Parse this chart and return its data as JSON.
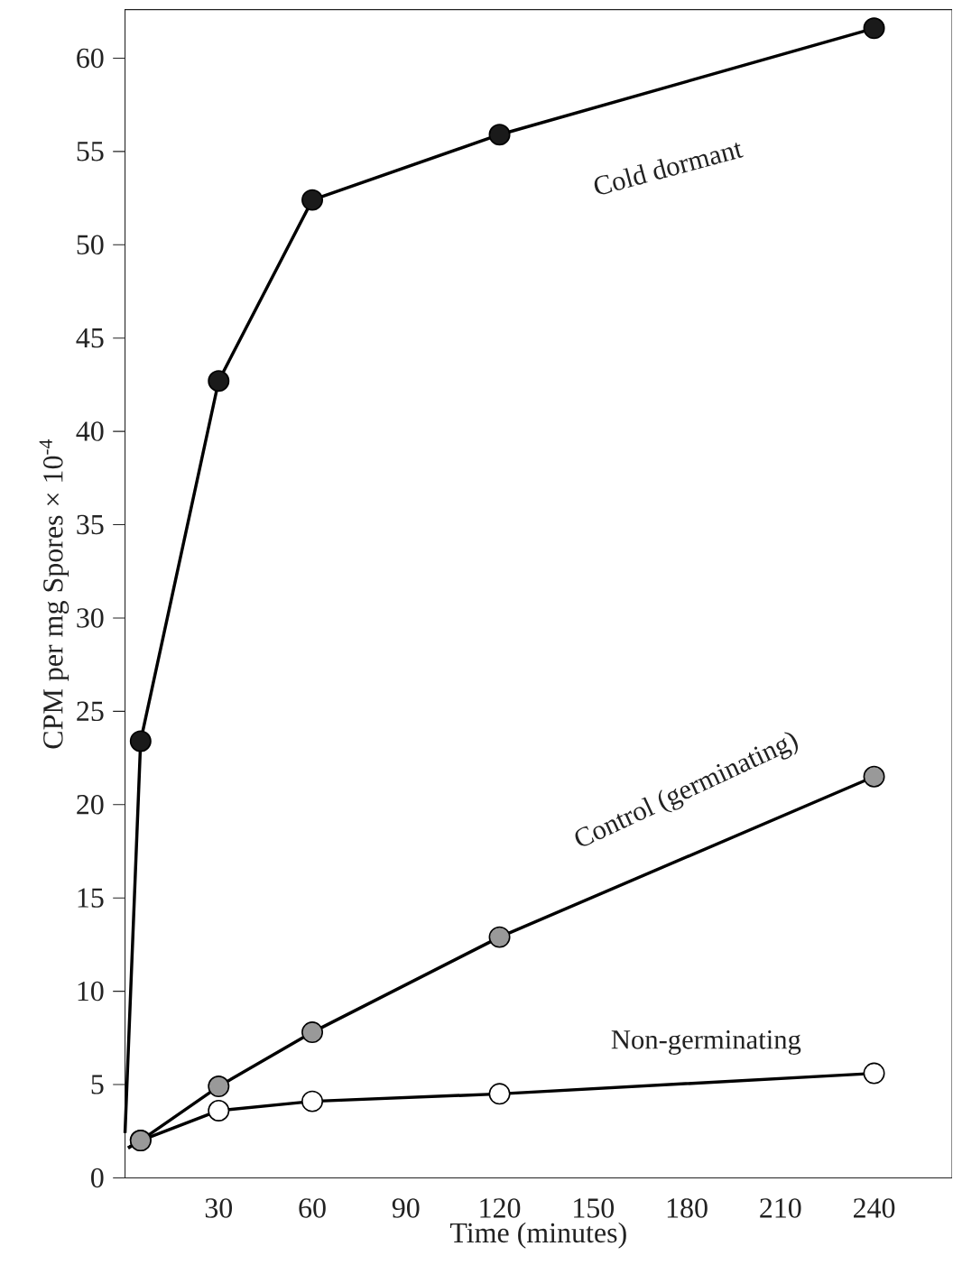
{
  "chart_data": {
    "type": "line",
    "xlabel": "Time (minutes)",
    "ylabel": "CPM per mg Spores × 10$^{-4}$",
    "xlim": [
      0,
      265
    ],
    "xticks": [
      30,
      60,
      90,
      120,
      150,
      180,
      210,
      240
    ],
    "ylim": [
      0,
      62.6
    ],
    "yticks": [
      0,
      5,
      10,
      15,
      20,
      25,
      30,
      35,
      40,
      45,
      50,
      55,
      60
    ],
    "marker": "circle",
    "line_style": "solid",
    "series": [
      {
        "name": "Cold dormant",
        "color": "#1a1a1a",
        "x": [
          0,
          5,
          30,
          60,
          120,
          240
        ],
        "values": [
          2.4,
          23.4,
          42.7,
          52.4,
          55.9,
          61.6
        ]
      },
      {
        "name": "Control (germinating)",
        "color": "#999999",
        "x": [
          1,
          5,
          30,
          60,
          120,
          240
        ],
        "values": [
          1.6,
          2.0,
          4.9,
          7.8,
          12.9,
          21.5
        ]
      },
      {
        "name": "Non-germinating",
        "color": "#ffffff",
        "x": [
          1,
          5,
          30,
          60,
          120,
          240
        ],
        "values": [
          1.6,
          2.0,
          3.6,
          4.1,
          4.5,
          5.6
        ]
      }
    ]
  }
}
